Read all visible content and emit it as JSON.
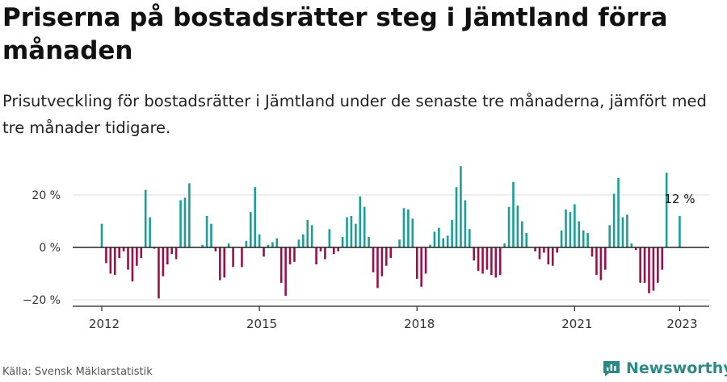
{
  "header": {
    "title": "Priserna på bostadsrätter steg i Jämtland förra månaden",
    "subtitle": "Prisutveckling för bostadsrätter i Jämtland under de senaste tre månaderna, jämfört med tre månader tidigare."
  },
  "footer": {
    "source": "Källa: Svensk Mäklarstatistik",
    "brand": "Newsworthy",
    "brand_icon": "newsworthy-logo-icon"
  },
  "colors": {
    "positive": "#1a9e96",
    "negative": "#9c0f4b",
    "grid": "#dddddd",
    "axis": "#222222",
    "brand": "#2b8a86"
  },
  "chart_data": {
    "type": "bar",
    "title": "Priserna på bostadsrätter steg i Jämtland förra månaden",
    "subtitle": "Prisutveckling för bostadsrätter i Jämtland under de senaste tre månaderna, jämfört med tre månader tidigare.",
    "xlabel": "",
    "ylabel": "",
    "unit": "%",
    "x_start": "2012-01",
    "x_end": "2023-01",
    "x_tick_labels": [
      "2012",
      "2015",
      "2018",
      "2021",
      "2023"
    ],
    "x_tick_dates": [
      "2012-01",
      "2015-01",
      "2018-01",
      "2021-01",
      "2023-01"
    ],
    "ylim": [
      -22,
      32
    ],
    "y_ticks": [
      20,
      0,
      -20
    ],
    "y_tick_labels": [
      "20 %",
      "0 %",
      "−20 %"
    ],
    "grid": true,
    "legend": "none",
    "annotation": {
      "date": "2023-01",
      "label": "12 %"
    },
    "values": [
      9,
      -6,
      -10,
      -10.5,
      -4,
      -1.5,
      -8.5,
      -13,
      -7,
      -4,
      22,
      11.5,
      -0.5,
      -19.5,
      -11,
      -6.5,
      -2.5,
      -4.5,
      18,
      19,
      24.5,
      0,
      0,
      1,
      12,
      9,
      -1.5,
      -12.5,
      -11.5,
      1.5,
      -7.5,
      0,
      -7.5,
      2.5,
      13.5,
      23,
      5,
      -3.5,
      1,
      2,
      3.5,
      -13.5,
      -18.5,
      -6.5,
      -5.5,
      3,
      5,
      10.5,
      8.5,
      -6.5,
      -1.5,
      -4.5,
      7,
      -2.5,
      -1.5,
      4,
      11.5,
      12,
      9,
      19.5,
      15.5,
      4,
      -9.5,
      -15.5,
      -11,
      -7,
      -4,
      0,
      3,
      15,
      14.5,
      11,
      -12,
      -15,
      -10,
      1,
      6,
      7.5,
      3.5,
      4.5,
      10.5,
      23,
      31,
      18,
      7,
      -5,
      -9,
      -10,
      -8.5,
      -10.5,
      -11.5,
      -10.5,
      1.5,
      15.5,
      25,
      16,
      10,
      5.5,
      0,
      -1.5,
      -4.5,
      -2,
      -6.5,
      -7,
      -2,
      6.5,
      14.5,
      13.5,
      16.5,
      10,
      6.5,
      5.5,
      -3.5,
      -10.5,
      -12.5,
      -8.5,
      8.5,
      20.5,
      26.5,
      11.5,
      12.5,
      1.5,
      -1,
      -13.5,
      -13.5,
      -17.5,
      -16.5,
      -13.5,
      -8.5,
      28.5,
      0,
      0,
      12
    ]
  }
}
